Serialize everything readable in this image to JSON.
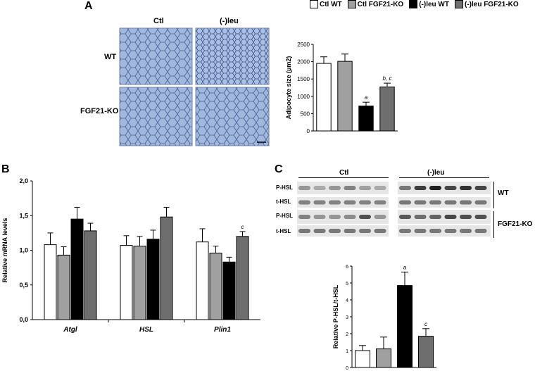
{
  "panels": {
    "a": "A",
    "b": "B",
    "c": "C"
  },
  "legend": [
    {
      "label": "Ctl WT",
      "color": "#ffffff"
    },
    {
      "label": "Ctl FGF21-KO",
      "color": "#a0a0a0"
    },
    {
      "label": "(-)leu WT",
      "color": "#000000"
    },
    {
      "label": "(-)leu FGF21-KO",
      "color": "#6e6e6e"
    }
  ],
  "micrographs": {
    "col_ctl": "Ctl",
    "col_leu": "(-)leu",
    "row_wt": "WT",
    "row_ko": "FGF21-KO"
  },
  "chart_data": [
    {
      "type": "bar",
      "ylabel": "Adipocyte size (µm2)",
      "ylim": [
        0,
        2500
      ],
      "yticks": [
        "0",
        "500",
        "1000",
        "1500",
        "2000",
        "2500"
      ],
      "categories": [
        "Ctl WT",
        "Ctl FGF21-KO",
        "(-)leu WT",
        "(-)leu FGF21-KO"
      ],
      "values": [
        1950,
        2010,
        720,
        1270
      ],
      "errors": [
        190,
        210,
        110,
        110
      ],
      "colors": [
        "#ffffff",
        "#a0a0a0",
        "#000000",
        "#6e6e6e"
      ],
      "annotations": [
        "",
        "",
        "a",
        "b, c"
      ],
      "grid": false
    },
    {
      "type": "bar",
      "ylabel": "Relative mRNA levels",
      "ylim": [
        0,
        2
      ],
      "yticks": [
        "0,0",
        "0,5",
        "1,0",
        "1,5",
        "2,0"
      ],
      "categories": [
        "Atgl",
        "HSL",
        "Plin1"
      ],
      "series": [
        {
          "values": [
            1.08,
            1.07,
            1.12
          ],
          "errors": [
            0.17,
            0.14,
            0.19
          ],
          "color": "#ffffff"
        },
        {
          "values": [
            0.93,
            1.06,
            0.96
          ],
          "errors": [
            0.12,
            0.14,
            0.1
          ],
          "color": "#a0a0a0"
        },
        {
          "values": [
            1.45,
            1.16,
            0.83
          ],
          "errors": [
            0.17,
            0.13,
            0.07
          ],
          "color": "#000000"
        },
        {
          "values": [
            1.28,
            1.48,
            1.2
          ],
          "errors": [
            0.11,
            0.14,
            0.07
          ],
          "color": "#6e6e6e"
        }
      ],
      "annotations": [
        [
          "",
          "",
          "",
          ""
        ],
        [
          "",
          "",
          "",
          ""
        ],
        [
          "",
          "",
          "",
          "c"
        ]
      ],
      "grid": false
    },
    {
      "type": "bar",
      "ylabel": "Relative P-HSL/t-HSL",
      "ylim": [
        0,
        6
      ],
      "yticks": [
        "0",
        "1",
        "2",
        "3",
        "4",
        "5",
        "6"
      ],
      "categories": [
        "Ctl WT",
        "Ctl FGF21-KO",
        "(-)leu WT",
        "(-)leu FGF21-KO"
      ],
      "values": [
        1.0,
        1.1,
        4.85,
        1.85
      ],
      "errors": [
        0.3,
        0.7,
        0.8,
        0.45
      ],
      "colors": [
        "#ffffff",
        "#a0a0a0",
        "#000000",
        "#6e6e6e"
      ],
      "annotations": [
        "",
        "",
        "a",
        "c"
      ],
      "grid": false
    }
  ],
  "blot": {
    "group_ctl": "Ctl",
    "group_leu": "(-)leu",
    "rows": [
      "P-HSL",
      "t-HSL",
      "P-HSL",
      "t-HSL"
    ],
    "genotype_wt": "WT",
    "genotype_ko": "FGF21-KO"
  }
}
